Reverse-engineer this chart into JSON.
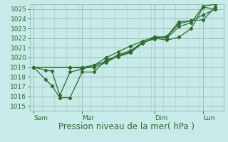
{
  "background_color": "#c8eae8",
  "grid_color": "#9dbfb8",
  "line_color": "#2d6e2d",
  "xlabel": "Pression niveau de la mer( hPa )",
  "ylim": [
    1014.5,
    1025.5
  ],
  "yticks": [
    1015,
    1016,
    1017,
    1018,
    1019,
    1020,
    1021,
    1022,
    1023,
    1024,
    1025
  ],
  "xtick_labels": [
    "Sam",
    "Mar",
    "Dim",
    "Lun"
  ],
  "xtick_positions": [
    0,
    48,
    120,
    168
  ],
  "xlim": [
    -4,
    188
  ],
  "vline_positions": [
    0,
    48,
    120,
    168
  ],
  "lines": [
    {
      "x": [
        0,
        12,
        18,
        26,
        36,
        48,
        60,
        72,
        84,
        96,
        108,
        120,
        132,
        144,
        156,
        168,
        180
      ],
      "y": [
        1019.0,
        1017.7,
        1017.1,
        1015.85,
        1015.85,
        1018.5,
        1018.5,
        1019.8,
        1020.1,
        1020.5,
        1021.5,
        1022.0,
        1021.8,
        1022.1,
        1023.0,
        1025.2,
        1025.0
      ]
    },
    {
      "x": [
        0,
        12,
        18,
        26,
        36,
        48,
        60,
        72,
        84,
        96,
        108,
        120,
        132,
        144,
        156,
        168,
        180
      ],
      "y": [
        1019.0,
        1018.7,
        1018.6,
        1016.1,
        1018.5,
        1018.8,
        1019.2,
        1020.0,
        1020.6,
        1021.2,
        1021.7,
        1022.15,
        1022.0,
        1023.2,
        1023.6,
        1025.3,
        1025.5
      ]
    },
    {
      "x": [
        0,
        36,
        48,
        60,
        72,
        84,
        96,
        108,
        120,
        132,
        144,
        156,
        168,
        180
      ],
      "y": [
        1019.0,
        1019.0,
        1018.9,
        1019.0,
        1019.5,
        1020.2,
        1020.6,
        1021.5,
        1022.1,
        1022.15,
        1023.5,
        1023.8,
        1024.4,
        1025.0
      ]
    },
    {
      "x": [
        0,
        36,
        48,
        60,
        72,
        84,
        96,
        108,
        120,
        132,
        144,
        156,
        168,
        180
      ],
      "y": [
        1019.0,
        1019.0,
        1019.0,
        1019.2,
        1019.6,
        1020.3,
        1020.7,
        1021.6,
        1021.9,
        1022.2,
        1023.7,
        1023.8,
        1023.9,
        1025.2
      ]
    }
  ],
  "marker": "D",
  "markersize": 2.2,
  "linewidth": 0.9,
  "xlabel_fontsize": 8.5,
  "tick_fontsize": 6.5
}
